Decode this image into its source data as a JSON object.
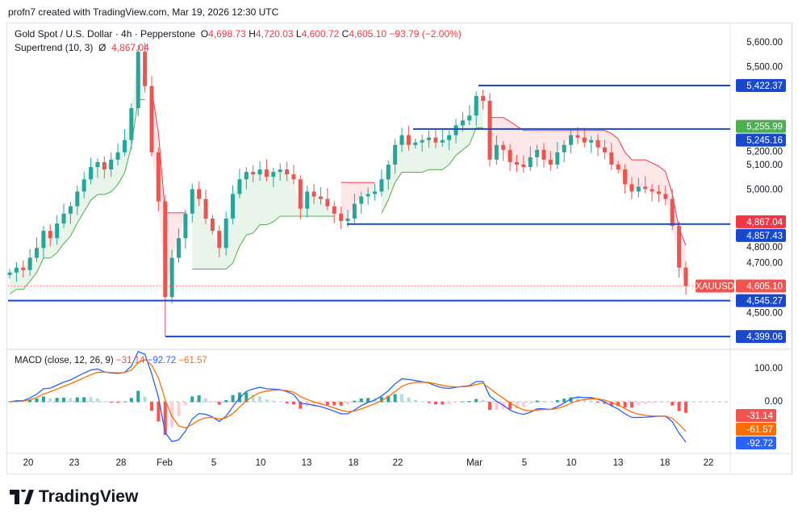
{
  "credit": "profn7 created with TradingView.com, Mar 19, 2026 12:30 UTC",
  "legend": {
    "symbol": "Gold Spot / U.S. Dollar · 4h · Pepperstone",
    "o_label": "O",
    "o": "4,698.73",
    "h_label": "H",
    "h": "4,720.03",
    "l_label": "L",
    "l": "4,600.72",
    "c_label": "C",
    "c": "4,605.10",
    "change": "−93.79 (−2.00%)",
    "supertrend": "Supertrend (10, 3)",
    "supertrend_sym": "Ø",
    "supertrend_val": "4,867.04"
  },
  "macd_legend": {
    "name": "MACD (close, 12, 26, 9)",
    "hist": "−31.14",
    "macd": "−92.72",
    "signal": "−61.57"
  },
  "logo": "TradingView",
  "colors": {
    "up": "#26a69a",
    "down": "#ef5350",
    "level": "#1848cc",
    "macd": "#2962ff",
    "signal": "#ff6d00",
    "st_up": "#4caf50",
    "st_down": "#f23645"
  },
  "chart_data": {
    "type": "candlestick",
    "symbol": "XAUUSD",
    "timeframe": "4h",
    "x_ticks": [
      "20",
      "23",
      "28",
      "Feb",
      "5",
      "10",
      "13",
      "18",
      "22",
      "Mar",
      "5",
      "10",
      "13",
      "18",
      "22"
    ],
    "y_ticks": [
      5600,
      5500,
      5200,
      5100,
      5000,
      4800,
      4700,
      4500
    ],
    "y_tick_labels": [
      "5,600.00",
      "5,500.00",
      "5,200.00",
      "5,100.00",
      "5,000.00",
      "4,800.00",
      "4,700.00",
      "4,500.00"
    ],
    "ylim": [
      4370,
      5700
    ],
    "closes": [
      4660,
      4680,
      4670,
      4720,
      4760,
      4830,
      4800,
      4860,
      4900,
      4930,
      4990,
      5040,
      5090,
      5110,
      5080,
      5120,
      5150,
      5200,
      5330,
      5560,
      5420,
      5150,
      4950,
      4560,
      4720,
      4800,
      4900,
      5000,
      4960,
      4880,
      4830,
      4760,
      4880,
      4980,
      5040,
      5070,
      5060,
      5080,
      5050,
      5070,
      5080,
      5060,
      5040,
      4920,
      4990,
      4970,
      4960,
      4930,
      4900,
      4870,
      4880,
      4940,
      4970,
      4980,
      4990,
      5040,
      5100,
      5180,
      5220,
      5180,
      5190,
      5200,
      5210,
      5190,
      5200,
      5220,
      5260,
      5280,
      5300,
      5380,
      5360,
      5120,
      5180,
      5160,
      5110,
      5100,
      5090,
      5130,
      5160,
      5120,
      5100,
      5150,
      5180,
      5220,
      5210,
      5190,
      5200,
      5170,
      5150,
      5100,
      5080,
      5020,
      4990,
      5010,
      5000,
      4990,
      4980,
      4960,
      4850,
      4680,
      4605.1
    ],
    "levels": [
      {
        "value": 5422.37,
        "label": "5,422.37"
      },
      {
        "value": 5245.16,
        "label": "5,245.16"
      },
      {
        "value": 4857.43,
        "label": "4,857.43"
      },
      {
        "value": 4545.27,
        "label": "4,545.27"
      },
      {
        "value": 4399.06,
        "label": "4,399.06"
      }
    ],
    "price_tags": [
      {
        "value": 5255.99,
        "label": "5,255.99",
        "color": "#4caf50"
      },
      {
        "value": 4867.04,
        "label": "4,867.04",
        "color": "#f23645"
      },
      {
        "value": 4605.1,
        "label": "4,605.10",
        "color": "#f05350"
      }
    ],
    "macd": {
      "y_ticks": [
        "100.00",
        "0.00"
      ],
      "tags": [
        {
          "label": "-31.14",
          "color": "#f05350"
        },
        {
          "label": "-61.57",
          "color": "#ff6d00"
        },
        {
          "label": "-92.72",
          "color": "#2962ff"
        }
      ]
    }
  }
}
